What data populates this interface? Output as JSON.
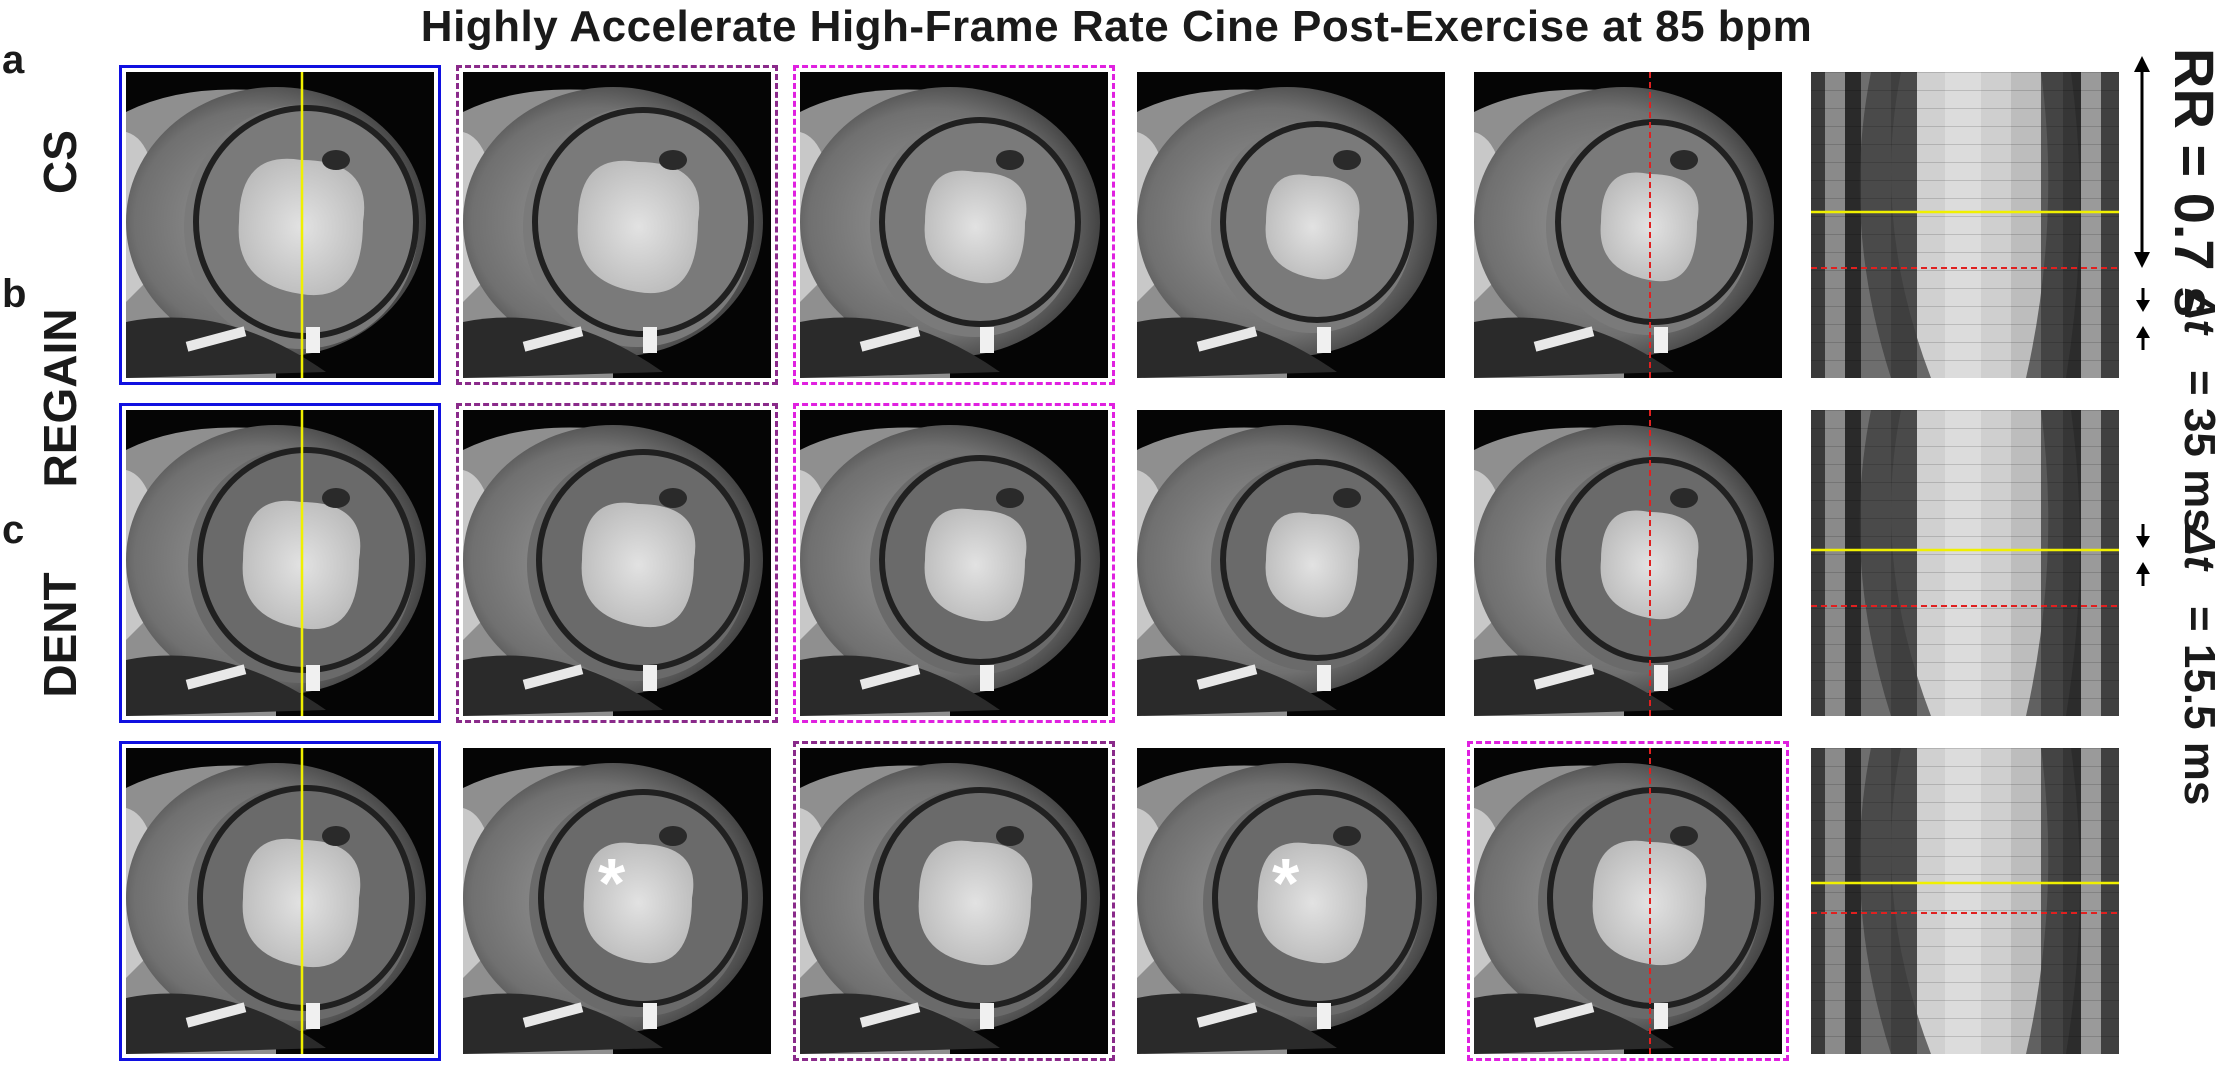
{
  "title": "Highly Accelerate High-Frame Rate Cine Post-Exercise at 85 bpm",
  "rows": [
    {
      "letter": "a",
      "label": "CS"
    },
    {
      "letter": "b",
      "label": "REGAIN"
    },
    {
      "letter": "c",
      "label": "DENT"
    }
  ],
  "annotations": {
    "rr_label": "RR = 0.7 s",
    "dt_symbol": "Δt",
    "dt_row_b": "= 35 ms",
    "dt_row_c": "= 15.5 ms",
    "asterisk": "*"
  },
  "colors": {
    "frame_solid": "#1010e0",
    "frame_dashed_purple": "#8a2a8a",
    "frame_dashed_magenta": "#e020e0",
    "line_yellow": "#f0f000",
    "line_red_dashed": "#e02020"
  }
}
